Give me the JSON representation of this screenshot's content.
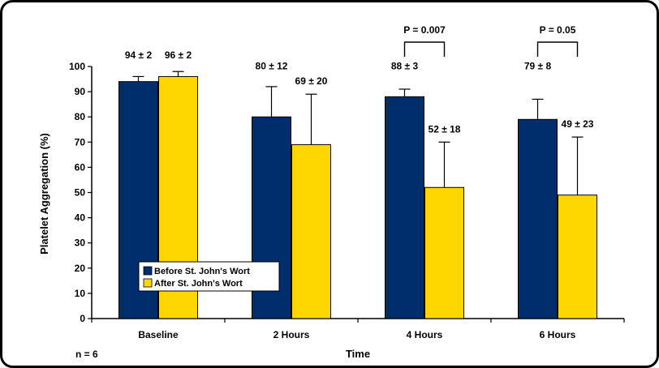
{
  "chart_data": {
    "type": "bar",
    "categories": [
      "Baseline",
      "2 Hours",
      "4 Hours",
      "6 Hours"
    ],
    "series": [
      {
        "name": "Before St. John's Wort",
        "color": "#002d6b",
        "values": [
          94,
          80,
          88,
          79
        ],
        "errors": [
          2,
          12,
          3,
          8
        ],
        "labels": [
          "94 ± 2",
          "80 ± 12",
          "88 ± 3",
          "79 ± 8"
        ]
      },
      {
        "name": "After St. John's Wort",
        "color": "#ffd700",
        "values": [
          96,
          69,
          52,
          49
        ],
        "errors": [
          2,
          20,
          18,
          23
        ],
        "labels": [
          "96 ± 2",
          "69 ± 20",
          "52 ± 18",
          "49 ± 23"
        ]
      }
    ],
    "xlabel": "Time",
    "ylabel": "Platelet Aggregation (%)",
    "ylim": [
      0,
      100
    ],
    "yticks": [
      0,
      10,
      20,
      30,
      40,
      50,
      60,
      70,
      80,
      90,
      100
    ],
    "legend_position": "lower-left",
    "significance": [
      {
        "category": "4 Hours",
        "label": "P = 0.007"
      },
      {
        "category": "6 Hours",
        "label": "P = 0.05"
      }
    ],
    "note": "n = 6",
    "grid": false
  }
}
